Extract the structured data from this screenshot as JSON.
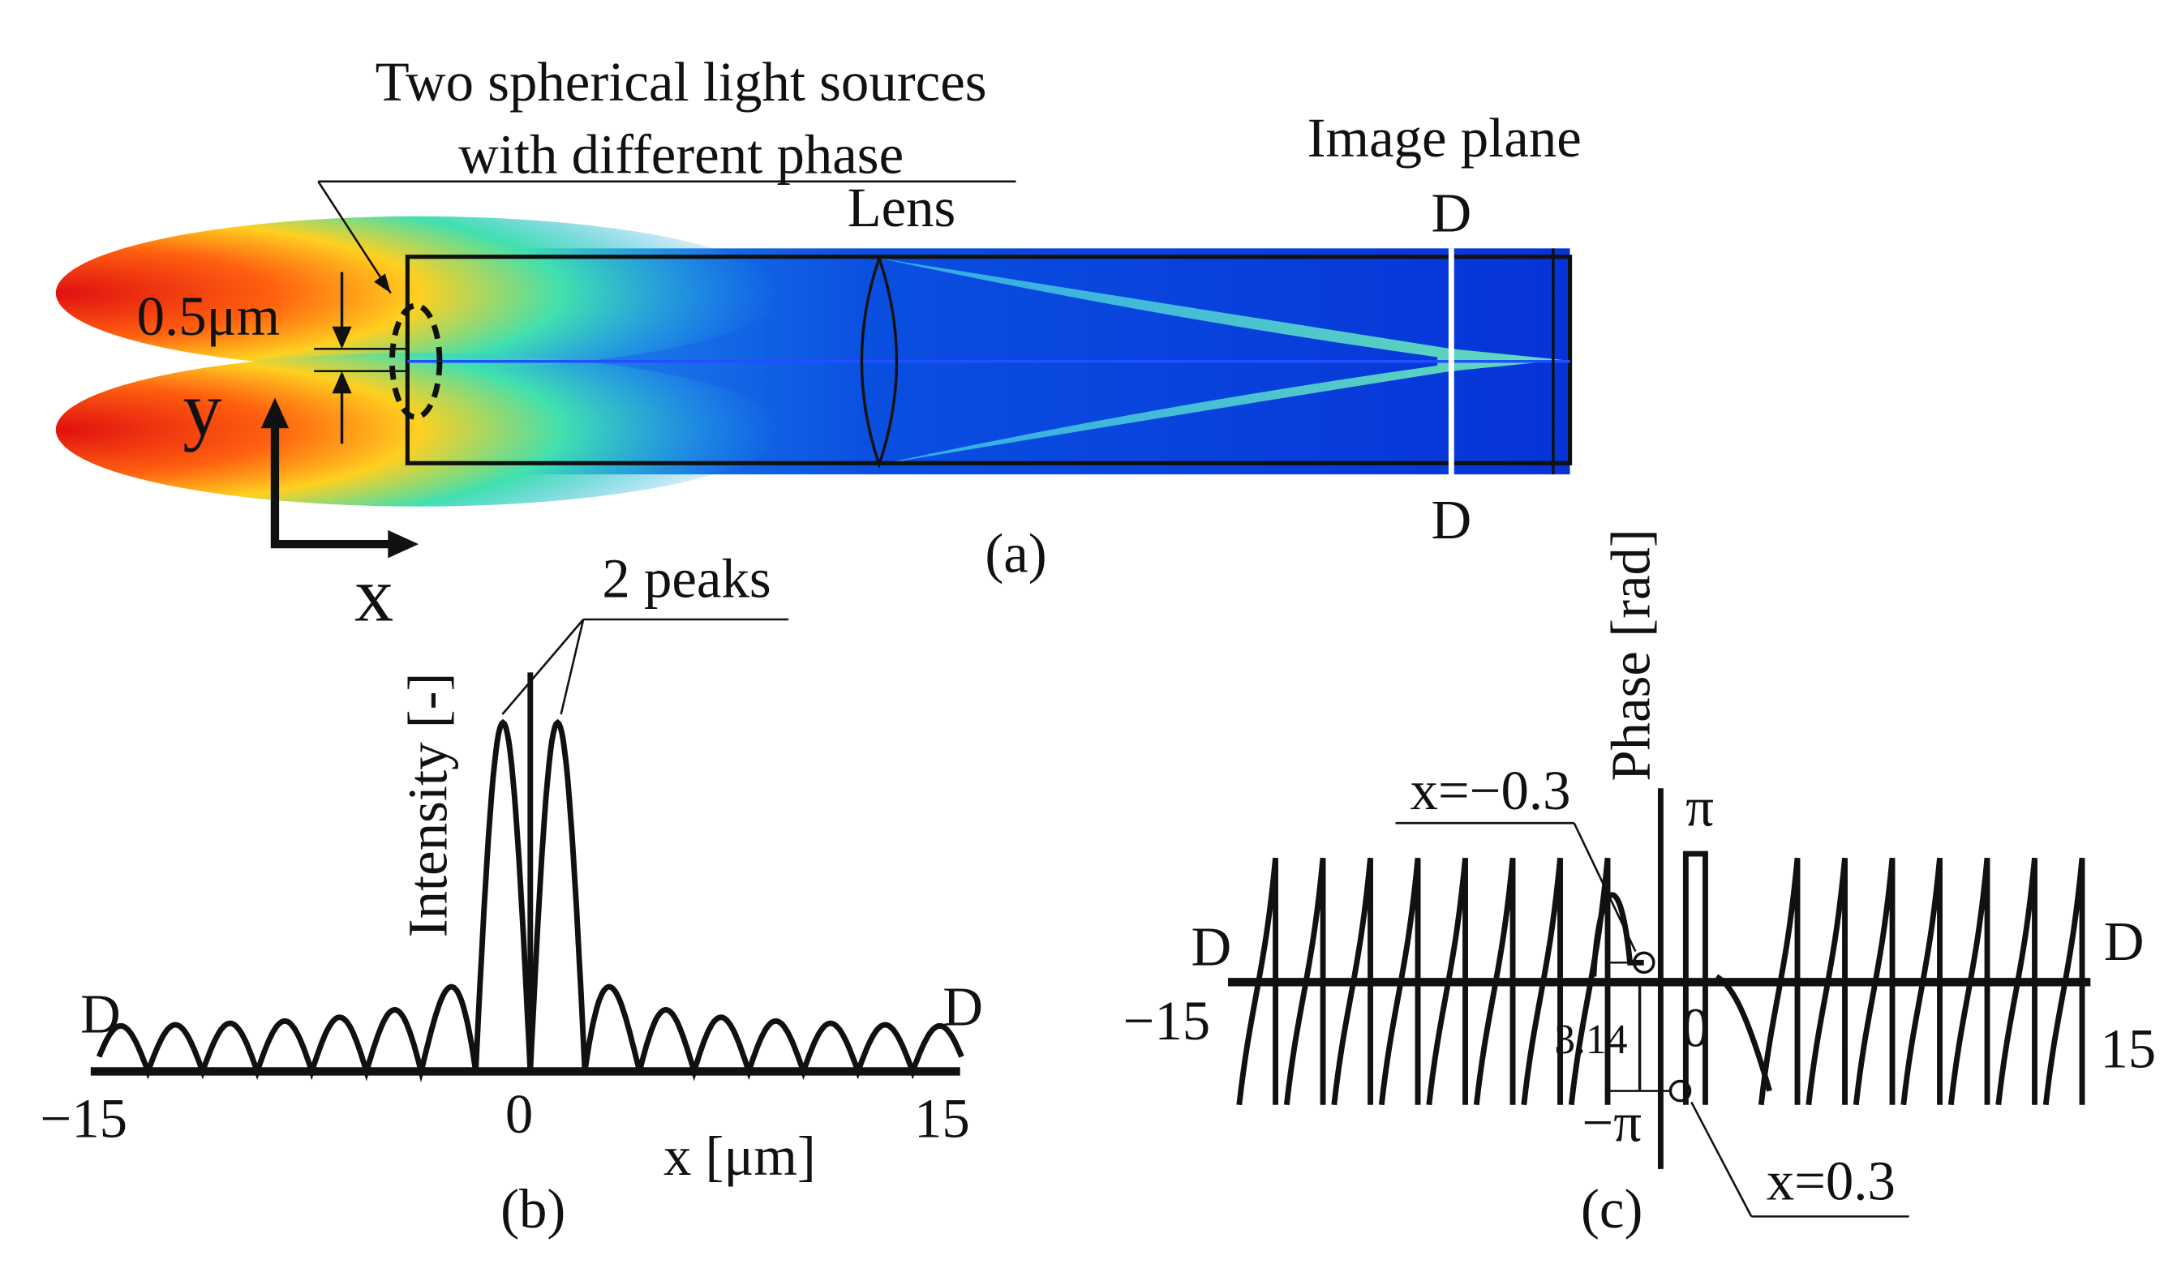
{
  "panel_a": {
    "source_label_1": "Two spherical light sources",
    "source_label_2": "with different phase",
    "image_plane": "Image plane",
    "lens": "Lens",
    "d_top": "D",
    "d_bottom": "D",
    "gap": "0.5μm",
    "y_axis": "y",
    "x_axis": "x",
    "caption": "(a)"
  },
  "panel_b": {
    "peaks": "2 peaks",
    "ylabel": "Intensity [-]",
    "d_left": "D",
    "d_right": "D",
    "tick_left": "−15",
    "tick_mid": "0",
    "tick_right": "15",
    "xlabel": "x [μm]",
    "caption": "(b)"
  },
  "panel_c": {
    "ylabel": "Phase [rad]",
    "point_left": "x=−0.3",
    "pi": "π",
    "d_left": "D",
    "d_right": "D",
    "tick_left": "−15",
    "tick_right": "15",
    "jump": "3.14",
    "zero": "0",
    "minus_pi": "−π",
    "point_right": "x=0.3",
    "caption": "(c)"
  }
}
